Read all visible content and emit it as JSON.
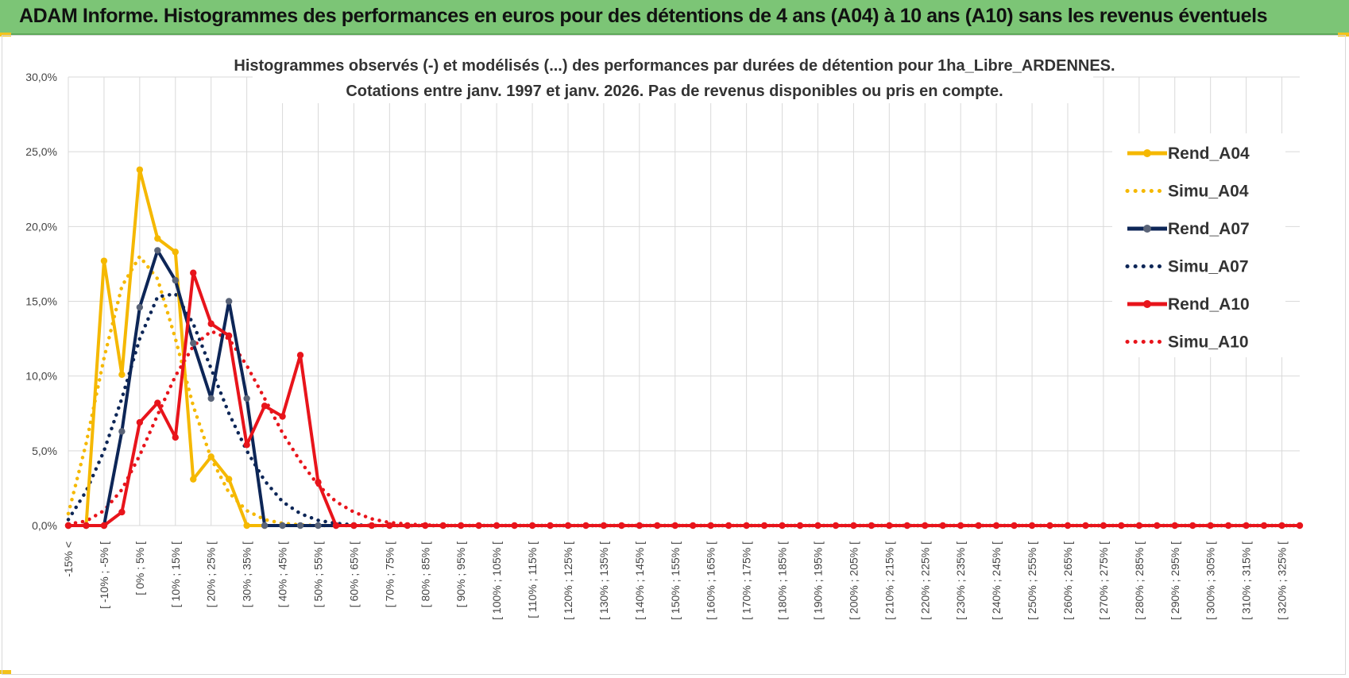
{
  "page_title": "ADAM Informe. Histogrammes des performances en euros pour des détentions de 4 ans (A04) à 10 ans (A10) sans les revenus éventuels",
  "colors": {
    "banner": "#7cc576",
    "A04": "#f5b800",
    "A07": "#0d2657",
    "A10": "#e8141b",
    "grid": "#d9d9d9"
  },
  "chart_data": {
    "type": "line",
    "title_line1": "Histogrammes observés (-) et modélisés (...) des performances par durées de détention pour 1ha_Libre_ARDENNES.",
    "title_line2": "Cotations entre janv. 1997 et janv. 2026. Pas de revenus disponibles ou pris en compte.",
    "xlabel": "",
    "ylabel": "",
    "ylim": [
      0,
      30
    ],
    "y_ticks": [
      "0,0%",
      "5,0%",
      "10,0%",
      "15,0%",
      "20,0%",
      "25,0%",
      "30,0%"
    ],
    "grid": true,
    "legend_position": "right",
    "x_tick_labels": [
      "-15% <",
      "[ -10% ; -5% [",
      "[ 0% ; 5% [",
      "[ 10% ; 15% [",
      "[ 20% ; 25% [",
      "[ 30% ; 35% [",
      "[ 40% ; 45% [",
      "[ 50% ; 55% [",
      "[ 60% ; 65% [",
      "[ 70% ; 75% [",
      "[ 80% ; 85% [",
      "[ 90% ; 95% [",
      "[ 100% ; 105% [",
      "[ 110% ; 115% [",
      "[ 120% ; 125% [",
      "[ 130% ; 135% [",
      "[ 140% ; 145% [",
      "[ 150% ; 155% [",
      "[ 160% ; 165% [",
      "[ 170% ; 175% [",
      "[ 180% ; 185% [",
      "[ 190% ; 195% [",
      "[ 200% ; 205% [",
      "[ 210% ; 215% [",
      "[ 220% ; 225% [",
      "[ 230% ; 235% [",
      "[ 240% ; 245% [",
      "[ 250% ; 255% [",
      "[ 260% ; 265% [",
      "[ 270% ; 275% [",
      "[ 280% ; 285% [",
      "[ 290% ; 295% [",
      "[ 300% ; 305% [",
      "[ 310% ; 315% [",
      "[ 320% ; 325% ["
    ],
    "series": [
      {
        "name": "Rend_A04",
        "style": "solid",
        "color": "#f5b800",
        "values": [
          0,
          0,
          17.7,
          10.1,
          23.8,
          19.2,
          18.3,
          3.1,
          4.6,
          3.1,
          0,
          0,
          0,
          0,
          0,
          0,
          0,
          0,
          0,
          0,
          0,
          0,
          0,
          0,
          0,
          0,
          0,
          0,
          0,
          0,
          0,
          0,
          0,
          0,
          0,
          0,
          0,
          0,
          0,
          0,
          0,
          0,
          0,
          0,
          0,
          0,
          0,
          0,
          0,
          0,
          0,
          0,
          0,
          0,
          0,
          0,
          0,
          0,
          0,
          0,
          0,
          0,
          0,
          0,
          0,
          0,
          0,
          0,
          0,
          0
        ]
      },
      {
        "name": "Simu_A04",
        "style": "dotted",
        "color": "#f5b800",
        "values": [
          0.8,
          5.5,
          11.2,
          16.0,
          18.0,
          16.5,
          12.5,
          8.0,
          4.5,
          2.2,
          1.0,
          0.4,
          0.15,
          0.05,
          0,
          0,
          0,
          0,
          0,
          0,
          0,
          0,
          0,
          0,
          0,
          0,
          0,
          0,
          0,
          0,
          0,
          0,
          0,
          0,
          0,
          0,
          0,
          0,
          0,
          0,
          0,
          0,
          0,
          0,
          0,
          0,
          0,
          0,
          0,
          0,
          0,
          0,
          0,
          0,
          0,
          0,
          0,
          0,
          0,
          0,
          0,
          0,
          0,
          0,
          0,
          0,
          0,
          0,
          0,
          0
        ]
      },
      {
        "name": "Rend_A07",
        "style": "solid",
        "color": "#0d2657",
        "values": [
          0,
          0,
          0,
          6.3,
          14.6,
          18.4,
          16.4,
          12.2,
          8.5,
          15.0,
          8.5,
          0,
          0,
          0,
          0,
          0,
          0,
          0,
          0,
          0,
          0,
          0,
          0,
          0,
          0,
          0,
          0,
          0,
          0,
          0,
          0,
          0,
          0,
          0,
          0,
          0,
          0,
          0,
          0,
          0,
          0,
          0,
          0,
          0,
          0,
          0,
          0,
          0,
          0,
          0,
          0,
          0,
          0,
          0,
          0,
          0,
          0,
          0,
          0,
          0,
          0,
          0,
          0,
          0,
          0,
          0,
          0,
          0,
          0,
          0
        ]
      },
      {
        "name": "Simu_A07",
        "style": "dotted",
        "color": "#0d2657",
        "values": [
          0.4,
          2.3,
          5.0,
          8.5,
          12.5,
          15.3,
          15.5,
          13.5,
          10.5,
          7.5,
          5.0,
          3.0,
          1.6,
          0.8,
          0.35,
          0.15,
          0.05,
          0,
          0,
          0,
          0,
          0,
          0,
          0,
          0,
          0,
          0,
          0,
          0,
          0,
          0,
          0,
          0,
          0,
          0,
          0,
          0,
          0,
          0,
          0,
          0,
          0,
          0,
          0,
          0,
          0,
          0,
          0,
          0,
          0,
          0,
          0,
          0,
          0,
          0,
          0,
          0,
          0,
          0,
          0,
          0,
          0,
          0,
          0,
          0,
          0,
          0,
          0,
          0,
          0
        ]
      },
      {
        "name": "Rend_A10",
        "style": "solid",
        "color": "#e8141b",
        "values": [
          0,
          0,
          0,
          0.9,
          6.9,
          8.2,
          5.9,
          16.9,
          13.5,
          12.7,
          5.4,
          8.0,
          7.3,
          11.4,
          2.9,
          0,
          0,
          0,
          0,
          0,
          0,
          0,
          0,
          0,
          0,
          0,
          0,
          0,
          0,
          0,
          0,
          0,
          0,
          0,
          0,
          0,
          0,
          0,
          0,
          0,
          0,
          0,
          0,
          0,
          0,
          0,
          0,
          0,
          0,
          0,
          0,
          0,
          0,
          0,
          0,
          0,
          0,
          0,
          0,
          0,
          0,
          0,
          0,
          0,
          0,
          0,
          0,
          0,
          0,
          0
        ]
      },
      {
        "name": "Simu_A10",
        "style": "dotted",
        "color": "#e8141b",
        "values": [
          0.1,
          0.3,
          1.0,
          2.4,
          4.7,
          7.4,
          10.0,
          12.0,
          13.0,
          12.5,
          10.7,
          8.5,
          6.2,
          4.3,
          2.7,
          1.6,
          0.9,
          0.45,
          0.2,
          0.1,
          0.04,
          0,
          0,
          0,
          0,
          0,
          0,
          0,
          0,
          0,
          0,
          0,
          0,
          0,
          0,
          0,
          0,
          0,
          0,
          0,
          0,
          0,
          0,
          0,
          0,
          0,
          0,
          0,
          0,
          0,
          0,
          0,
          0,
          0,
          0,
          0,
          0,
          0,
          0,
          0,
          0,
          0,
          0,
          0,
          0,
          0,
          0,
          0,
          0,
          0
        ]
      }
    ]
  }
}
